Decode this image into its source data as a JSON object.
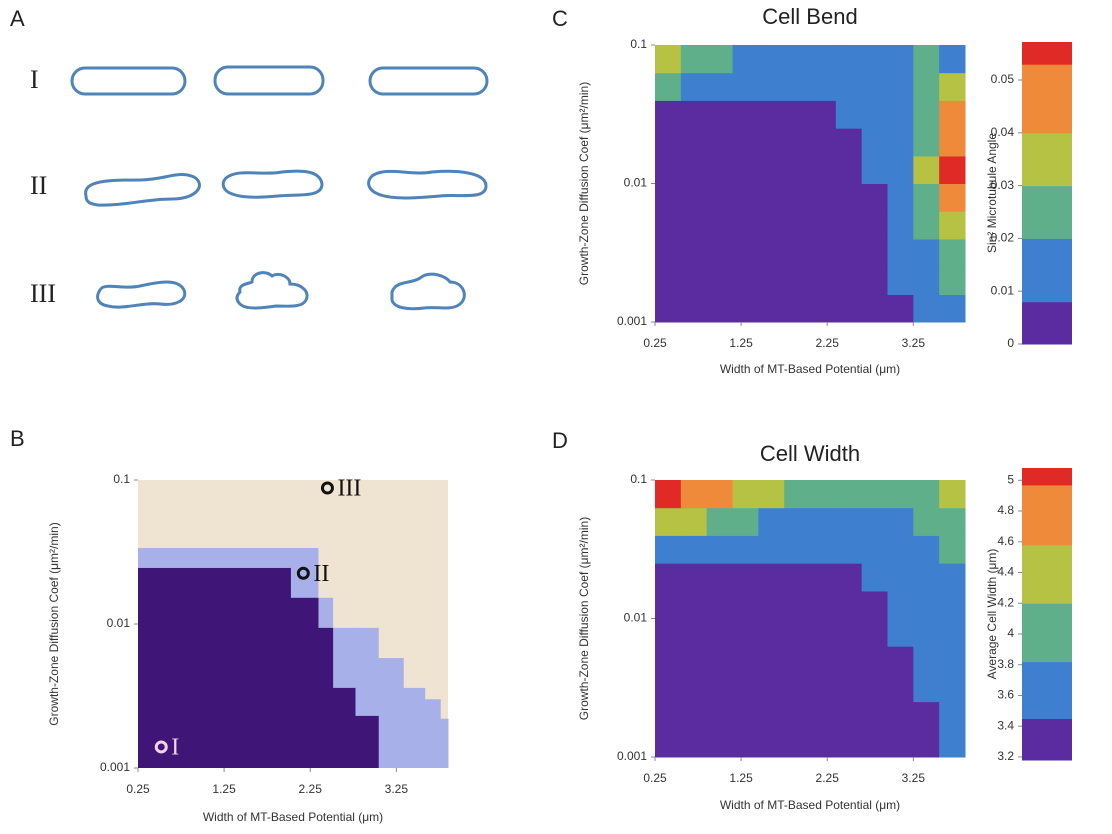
{
  "panel_labels": [
    "A",
    "B",
    "C",
    "D"
  ],
  "panel_a": {
    "rows": [
      "I",
      "II",
      "III"
    ]
  },
  "chart_data": [
    {
      "type": "phase_map",
      "xlabel": "Width of MT-Based Potential (μm)",
      "ylabel": "Growth-Zone Diffusion Coef (μm²/min)",
      "xlim": [
        0.25,
        3.85
      ],
      "ylim": [
        0.001,
        0.1
      ],
      "log_y": true,
      "xticks": [
        0.25,
        1.25,
        2.25,
        3.25
      ],
      "yticks": [
        0.001,
        0.01,
        0.1
      ],
      "background_color": "#efe4d2",
      "x_edges": [
        0.25,
        2.02,
        2.34,
        2.51,
        2.77,
        3.04,
        3.33,
        3.58,
        3.76,
        3.85
      ],
      "boundaries": [
        {
          "color": "#a8b0ea",
          "values": [
            0.0337,
            0.0337,
            0.0152,
            0.0094,
            0.0094,
            0.0058,
            0.0036,
            0.003,
            0.0022
          ]
        },
        {
          "color": "#3f1677",
          "values": [
            0.0245,
            0.0152,
            0.0094,
            0.0036,
            0.0023,
            null,
            null,
            null,
            null
          ]
        }
      ],
      "markers": [
        {
          "label": "I",
          "x": 0.52,
          "y": 0.0014,
          "color": "#f3d3e6"
        },
        {
          "label": "II",
          "x": 2.17,
          "y": 0.0225,
          "color": "#111111"
        },
        {
          "label": "III",
          "x": 2.45,
          "y": 0.088,
          "color": "#111111"
        }
      ]
    },
    {
      "type": "heatmap",
      "title": "Cell Bend",
      "xlabel": "Width of MT-Based Potential (μm)",
      "ylabel": "Growth-Zone Diffusion Coef (μm²/min)",
      "colorbar_label": "Sin² Microtubule Angle",
      "xlim": [
        0.25,
        3.85
      ],
      "ylim": [
        0.001,
        0.1
      ],
      "log_y": true,
      "xticks": [
        0.25,
        1.25,
        2.25,
        3.25
      ],
      "yticks": [
        0.001,
        0.01,
        0.1
      ],
      "x_edges": [
        0.25,
        0.55,
        0.85,
        1.15,
        1.45,
        1.75,
        2.05,
        2.35,
        2.65,
        2.95,
        3.25,
        3.55,
        3.85
      ],
      "y_edges": [
        0.001,
        0.00158,
        0.00251,
        0.00398,
        0.00631,
        0.01,
        0.0158,
        0.0251,
        0.0398,
        0.0631,
        0.1
      ],
      "values": [
        [
          0.004,
          0.004,
          0.004,
          0.004,
          0.004,
          0.004,
          0.004,
          0.005,
          0.006,
          0.007,
          0.01,
          0.018
        ],
        [
          0.004,
          0.004,
          0.004,
          0.004,
          0.004,
          0.004,
          0.004,
          0.005,
          0.006,
          0.008,
          0.012,
          0.022
        ],
        [
          0.004,
          0.004,
          0.004,
          0.004,
          0.004,
          0.004,
          0.004,
          0.005,
          0.006,
          0.009,
          0.016,
          0.028
        ],
        [
          0.004,
          0.004,
          0.004,
          0.004,
          0.004,
          0.004,
          0.004,
          0.005,
          0.006,
          0.01,
          0.02,
          0.036
        ],
        [
          0.004,
          0.004,
          0.004,
          0.004,
          0.004,
          0.004,
          0.005,
          0.005,
          0.007,
          0.012,
          0.026,
          0.048
        ],
        [
          0.004,
          0.004,
          0.004,
          0.004,
          0.004,
          0.004,
          0.005,
          0.006,
          0.008,
          0.013,
          0.03,
          0.056
        ],
        [
          0.004,
          0.004,
          0.004,
          0.004,
          0.004,
          0.005,
          0.005,
          0.006,
          0.009,
          0.014,
          0.028,
          0.045
        ],
        [
          0.006,
          0.006,
          0.006,
          0.006,
          0.006,
          0.006,
          0.007,
          0.009,
          0.011,
          0.016,
          0.026,
          0.042
        ],
        [
          0.022,
          0.016,
          0.012,
          0.011,
          0.01,
          0.01,
          0.01,
          0.01,
          0.012,
          0.018,
          0.026,
          0.036
        ],
        [
          0.032,
          0.026,
          0.022,
          0.018,
          0.016,
          0.014,
          0.014,
          0.012,
          0.014,
          0.018,
          0.022,
          0.012
        ]
      ],
      "colorbar": {
        "lim": [
          0,
          0.0572
        ],
        "ticks": [
          0,
          0.01,
          0.02,
          0.03,
          0.04,
          0.05
        ],
        "bins": [
          0,
          0.008,
          0.02,
          0.03,
          0.04,
          0.053,
          0.0572
        ],
        "colors": [
          "#5a2ca0",
          "#3f7fd0",
          "#5fb08a",
          "#b5c244",
          "#ee8a3a",
          "#e02a26"
        ]
      }
    },
    {
      "type": "heatmap",
      "title": "Cell Width",
      "xlabel": "Width of MT-Based Potential (μm)",
      "ylabel": "Growth-Zone Diffusion Coef (μm²/min)",
      "colorbar_label": "Average Cell Width (μm)",
      "xlim": [
        0.25,
        3.85
      ],
      "ylim": [
        0.001,
        0.1
      ],
      "log_y": true,
      "xticks": [
        0.25,
        1.25,
        2.25,
        3.25
      ],
      "yticks": [
        0.001,
        0.01,
        0.1
      ],
      "x_edges": [
        0.25,
        0.55,
        0.85,
        1.15,
        1.45,
        1.75,
        2.05,
        2.35,
        2.65,
        2.95,
        3.25,
        3.55,
        3.85
      ],
      "y_edges": [
        0.001,
        0.00158,
        0.00251,
        0.00398,
        0.00631,
        0.01,
        0.0158,
        0.0251,
        0.0398,
        0.0631,
        0.1
      ],
      "values": [
        [
          3.3,
          3.3,
          3.3,
          3.3,
          3.3,
          3.3,
          3.3,
          3.3,
          3.3,
          3.4,
          3.4,
          3.5
        ],
        [
          3.3,
          3.3,
          3.3,
          3.3,
          3.3,
          3.3,
          3.3,
          3.3,
          3.3,
          3.4,
          3.4,
          3.5
        ],
        [
          3.3,
          3.3,
          3.3,
          3.3,
          3.3,
          3.3,
          3.3,
          3.3,
          3.4,
          3.4,
          3.5,
          3.5
        ],
        [
          3.3,
          3.3,
          3.3,
          3.3,
          3.3,
          3.3,
          3.3,
          3.3,
          3.4,
          3.4,
          3.5,
          3.6
        ],
        [
          3.3,
          3.3,
          3.3,
          3.3,
          3.3,
          3.3,
          3.3,
          3.3,
          3.4,
          3.5,
          3.5,
          3.6
        ],
        [
          3.3,
          3.3,
          3.3,
          3.3,
          3.3,
          3.3,
          3.3,
          3.3,
          3.4,
          3.5,
          3.6,
          3.7
        ],
        [
          3.3,
          3.3,
          3.3,
          3.3,
          3.3,
          3.3,
          3.3,
          3.4,
          3.5,
          3.6,
          3.6,
          3.8
        ],
        [
          3.5,
          3.5,
          3.5,
          3.5,
          3.5,
          3.5,
          3.5,
          3.5,
          3.6,
          3.6,
          3.7,
          3.9
        ],
        [
          4.3,
          4.2,
          4.0,
          3.9,
          3.8,
          3.8,
          3.8,
          3.7,
          3.7,
          3.8,
          3.9,
          4.1
        ],
        [
          5.0,
          4.8,
          4.7,
          4.5,
          4.4,
          4.1,
          4.0,
          3.9,
          3.9,
          3.9,
          3.9,
          4.2
        ]
      ],
      "colorbar": {
        "lim": [
          3.18,
          5.08
        ],
        "ticks": [
          3.2,
          3.4,
          3.6,
          3.8,
          4,
          4.2,
          4.4,
          4.6,
          4.8,
          5
        ],
        "bins": [
          3.18,
          3.45,
          3.82,
          4.2,
          4.58,
          4.97,
          5.08
        ],
        "colors": [
          "#5a2ca0",
          "#3f7fd0",
          "#5fb08a",
          "#b5c244",
          "#ee8a3a",
          "#e02a26"
        ]
      }
    }
  ]
}
